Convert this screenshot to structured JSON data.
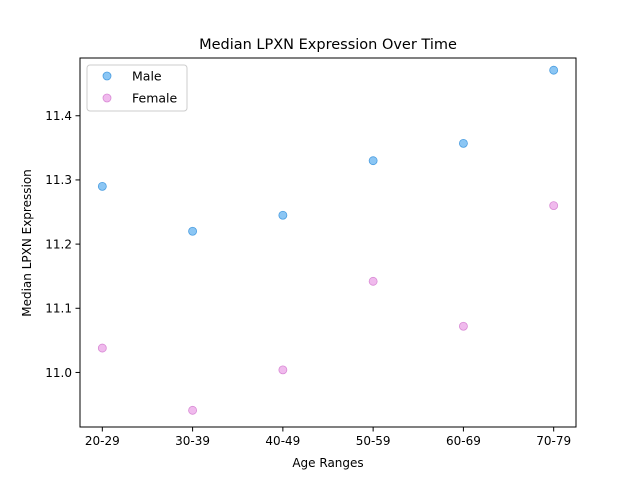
{
  "chart_data": {
    "type": "scatter",
    "title": "Median LPXN Expression Over Time",
    "xlabel": "Age Ranges",
    "ylabel": "Median LPXN Expression",
    "categories": [
      "20-29",
      "30-39",
      "40-49",
      "50-59",
      "60-69",
      "70-79"
    ],
    "ylim": [
      10.915,
      11.49
    ],
    "yticks": [
      11.0,
      11.1,
      11.2,
      11.3,
      11.4
    ],
    "ytick_labels": [
      "11.0",
      "11.1",
      "11.2",
      "11.3",
      "11.4"
    ],
    "grid": false,
    "legend_position": "upper-left",
    "series": [
      {
        "name": "Male",
        "color": "#5aaef0",
        "edge_color": "#4a9de0",
        "values": [
          11.29,
          11.22,
          11.245,
          11.33,
          11.357,
          11.471
        ]
      },
      {
        "name": "Female",
        "color": "#ea9ce6",
        "edge_color": "#d98ad5",
        "values": [
          11.038,
          10.941,
          11.004,
          11.142,
          11.072,
          11.26
        ]
      }
    ]
  }
}
